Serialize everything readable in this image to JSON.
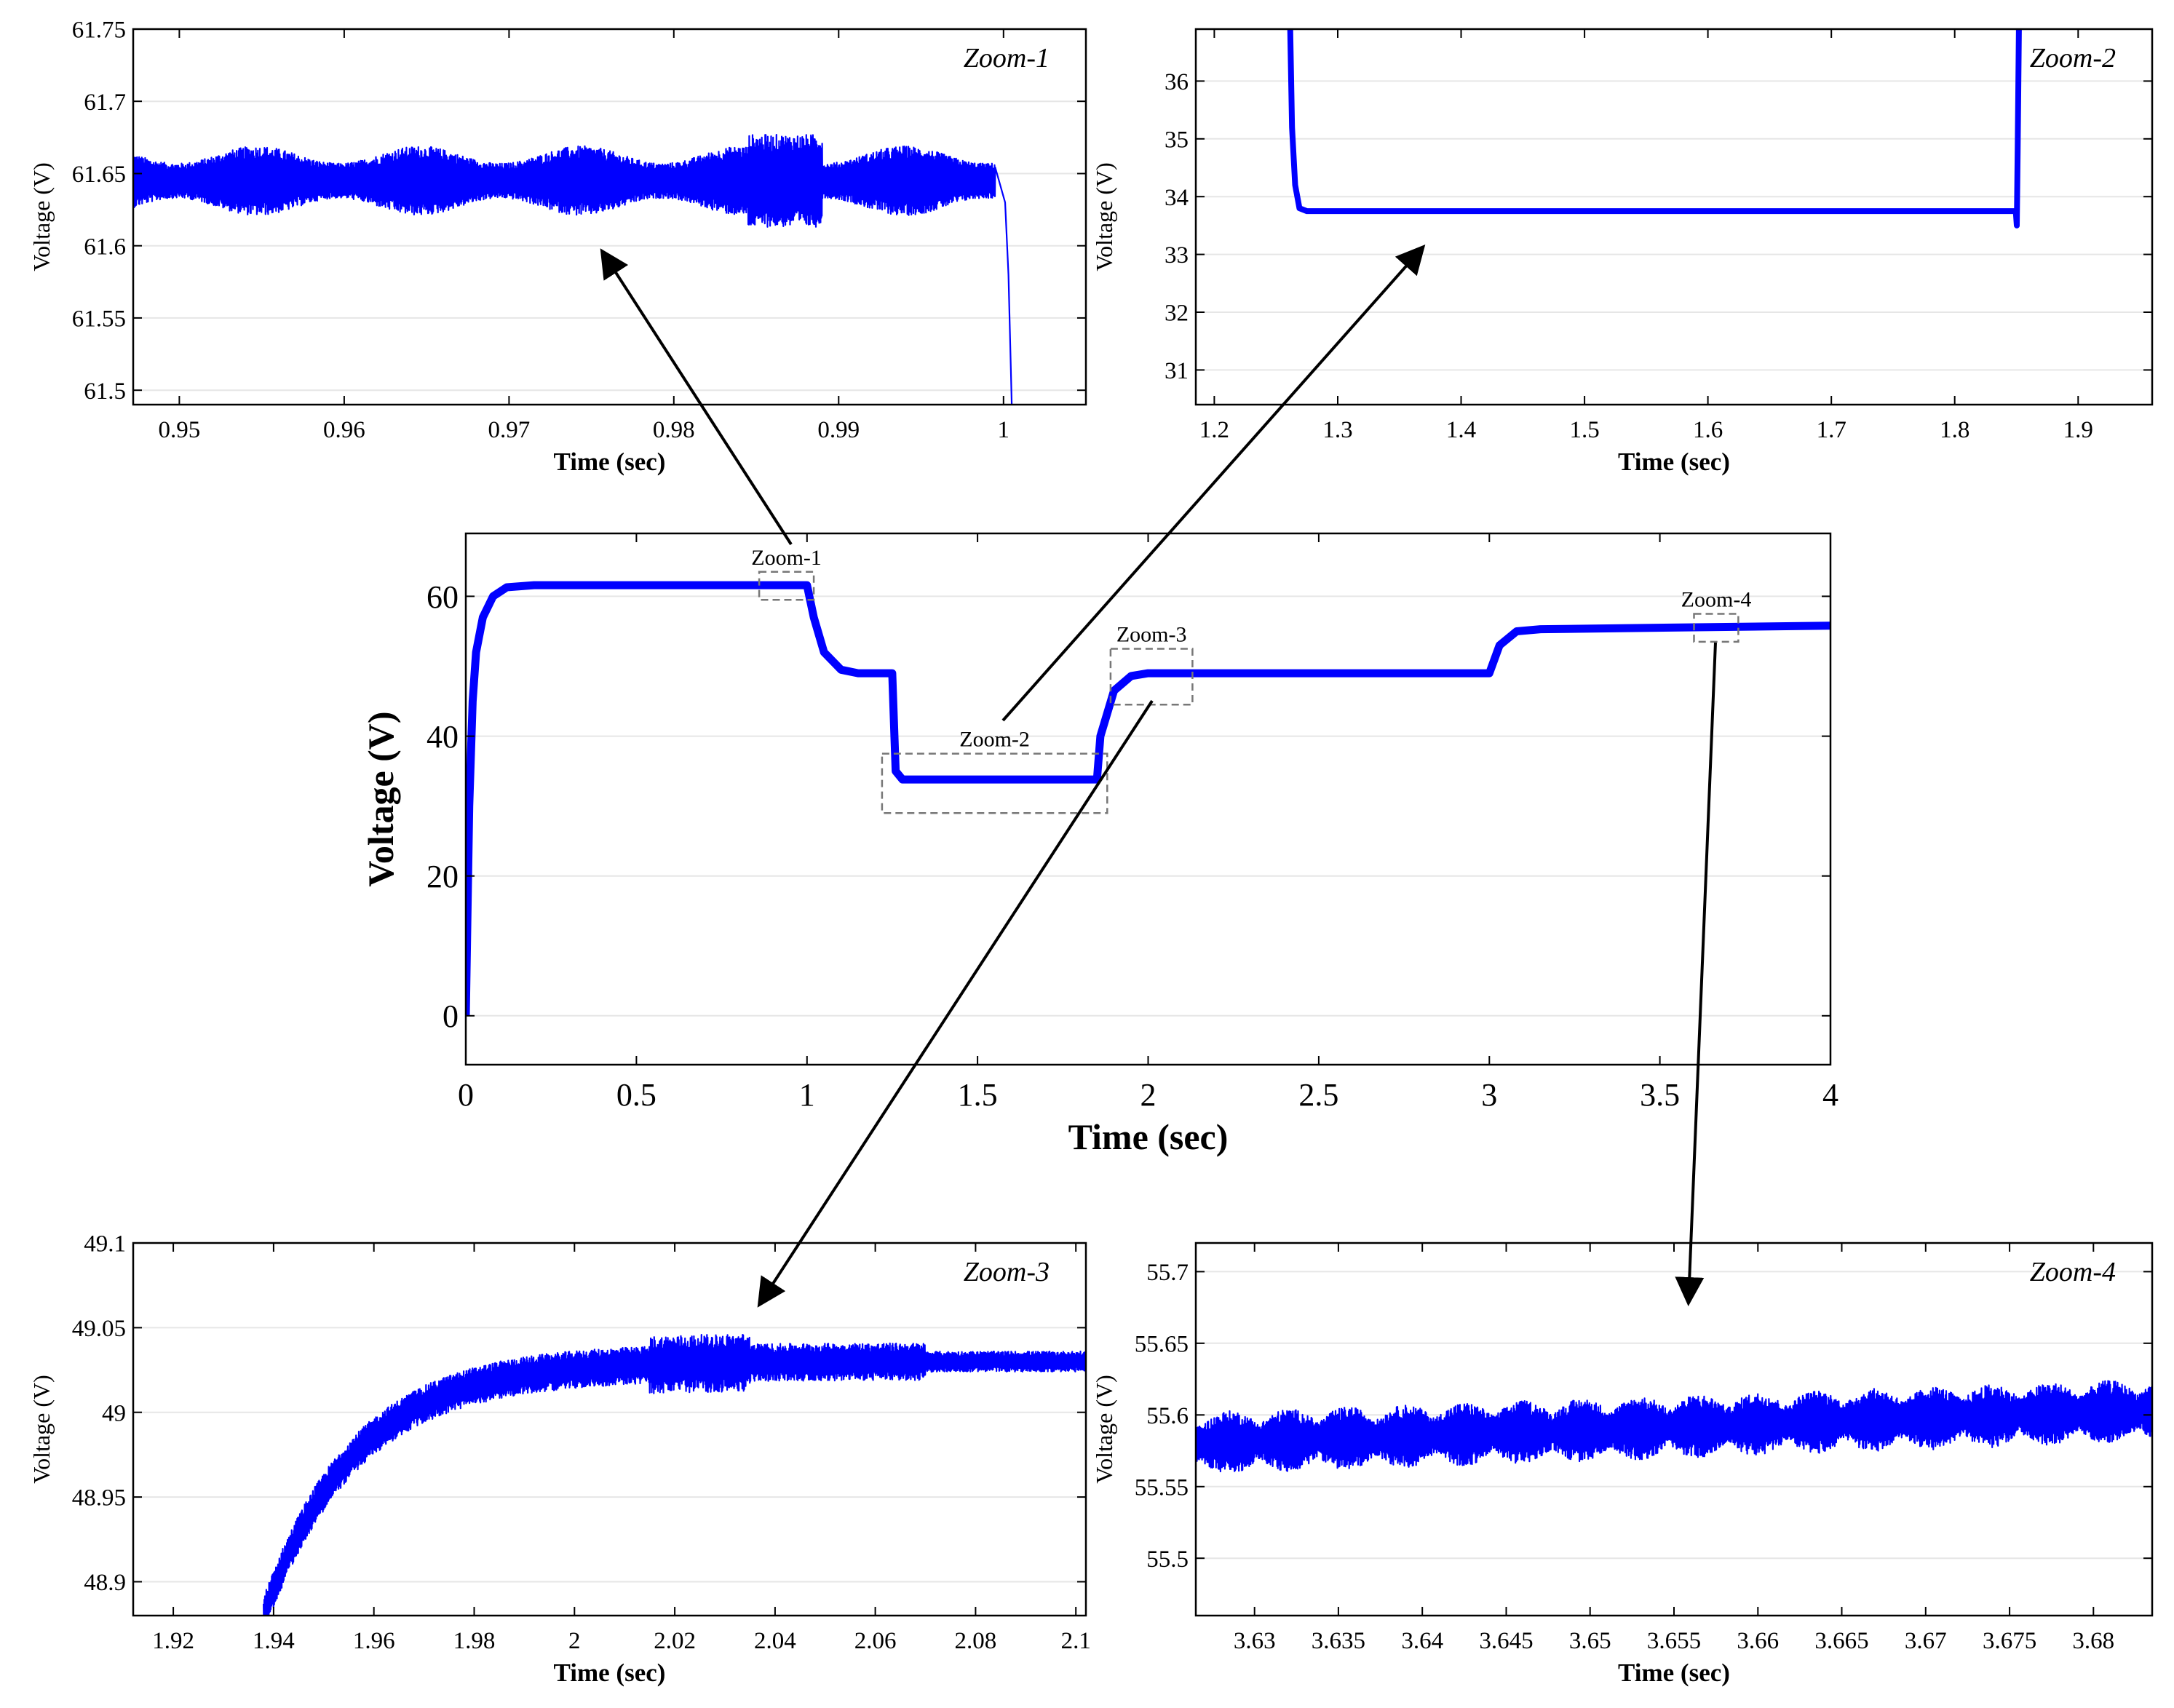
{
  "line_color": "#0000ff",
  "chart_data": [
    {
      "id": "main",
      "type": "line",
      "xlabel": "Time (sec)",
      "ylabel": "Voltage (V)",
      "xlim": [
        0,
        4
      ],
      "ylim": [
        -7,
        69
      ],
      "xticks": [
        0,
        0.5,
        1,
        1.5,
        2,
        2.5,
        3,
        3.5,
        4
      ],
      "xtick_labels": [
        "0",
        "0.5",
        "1",
        "1.5",
        "2",
        "2.5",
        "3",
        "3.5",
        "4"
      ],
      "yticks": [
        0,
        20,
        40,
        60
      ],
      "ytick_labels": [
        "0",
        "20",
        "40",
        "60"
      ],
      "grid": "horizontal",
      "series": [
        {
          "x": [
            0,
            0.01,
            0.02,
            0.03,
            0.05,
            0.08,
            0.12,
            0.2,
            1.0,
            1.02,
            1.05,
            1.1,
            1.15,
            1.25,
            1.26,
            1.28,
            1.85,
            1.86,
            1.9,
            1.95,
            2.0,
            3.0,
            3.03,
            3.08,
            3.15,
            4.0
          ],
          "y": [
            0,
            30,
            45,
            52,
            57,
            60,
            61.3,
            61.6,
            61.6,
            57,
            52,
            49.5,
            49,
            49,
            35,
            33.8,
            33.8,
            40,
            46.5,
            48.6,
            49,
            49,
            53,
            55,
            55.3,
            55.8
          ]
        }
      ],
      "zoom_boxes": [
        {
          "label": "Zoom-1",
          "x": [
            0.86,
            1.02
          ],
          "y": [
            59.5,
            63.5
          ]
        },
        {
          "label": "Zoom-2",
          "x": [
            1.22,
            1.88
          ],
          "y": [
            29,
            37.5
          ]
        },
        {
          "label": "Zoom-3",
          "x": [
            1.89,
            2.13
          ],
          "y": [
            44.5,
            52.5
          ]
        },
        {
          "label": "Zoom-4",
          "x": [
            3.6,
            3.73
          ],
          "y": [
            53.5,
            57.5
          ]
        }
      ]
    },
    {
      "id": "zoom1",
      "type": "line",
      "annotation": "Zoom-1",
      "xlabel": "Time (sec)",
      "ylabel": "Voltage (V)",
      "xlim": [
        0.9472,
        1.005
      ],
      "ylim": [
        61.49,
        61.75
      ],
      "xticks": [
        0.95,
        0.96,
        0.97,
        0.98,
        0.99,
        1
      ],
      "xtick_labels": [
        "0.95",
        "0.96",
        "0.97",
        "0.98",
        "0.99",
        "1"
      ],
      "yticks": [
        61.5,
        61.55,
        61.6,
        61.65,
        61.7,
        61.75
      ],
      "ytick_labels": [
        "61.5",
        "61.55",
        "61.6",
        "61.65",
        "61.7",
        "61.75"
      ],
      "grid": "horizontal",
      "series": [
        {
          "description_values": "oscillating signal, mean 61.645 V, amplitude about ±0.02 V, drops below 61.5 V at t = 1.0005 s",
          "x": [
            0.9472,
            0.9865,
            0.9995,
            1.0003,
            1.0005
          ],
          "y": [
            61.645,
            61.645,
            61.645,
            61.62,
            61.49
          ]
        }
      ]
    },
    {
      "id": "zoom2",
      "type": "line",
      "annotation": "Zoom-2",
      "xlabel": "Time (sec)",
      "ylabel": "Voltage (V)",
      "xlim": [
        1.185,
        1.96
      ],
      "ylim": [
        30.4,
        36.9
      ],
      "xticks": [
        1.2,
        1.3,
        1.4,
        1.5,
        1.6,
        1.7,
        1.8,
        1.9
      ],
      "xtick_labels": [
        "1.2",
        "1.3",
        "1.4",
        "1.5",
        "1.6",
        "1.7",
        "1.8",
        "1.9"
      ],
      "yticks": [
        31,
        32,
        33,
        34,
        35,
        36
      ],
      "ytick_labels": [
        "31",
        "32",
        "33",
        "34",
        "35",
        "36"
      ],
      "grid": "horizontal",
      "series": [
        {
          "x": [
            1.2615,
            1.263,
            1.2655,
            1.269,
            1.275,
            1.8495,
            1.8503,
            1.851,
            1.852,
            1.853
          ],
          "y": [
            36.9,
            35.2,
            34.2,
            33.8,
            33.75,
            33.75,
            33.5,
            34.8,
            36.9,
            36.9
          ]
        }
      ]
    },
    {
      "id": "zoom3",
      "type": "line",
      "annotation": "Zoom-3",
      "xlabel": "Time (sec)",
      "ylabel": "Voltage (V)",
      "xlim": [
        1.912,
        2.102
      ],
      "ylim": [
        48.88,
        49.1
      ],
      "xticks": [
        1.92,
        1.94,
        1.96,
        1.98,
        2,
        2.02,
        2.04,
        2.06,
        2.08,
        2.1
      ],
      "xtick_labels": [
        "1.92",
        "1.94",
        "1.96",
        "1.98",
        "2",
        "2.02",
        "2.04",
        "2.06",
        "2.08",
        "2.1"
      ],
      "yticks": [
        48.9,
        48.95,
        49,
        49.05,
        49.1
      ],
      "ytick_labels": [
        "48.9",
        "48.95",
        "49",
        "49.05",
        "49.1"
      ],
      "grid": "horizontal",
      "series": [
        {
          "description_values": "first-order rise from 48.88 V at 1.938 s toward 49.03 V with ±0.01 V ripple",
          "x": [
            1.938,
            1.95,
            1.96,
            1.98,
            2.0,
            2.05,
            2.102
          ],
          "y": [
            48.88,
            48.945,
            48.975,
            49.01,
            49.022,
            49.028,
            49.03
          ]
        }
      ]
    },
    {
      "id": "zoom4",
      "type": "line",
      "annotation": "Zoom-4",
      "xlabel": "Time (sec)",
      "ylabel": "Voltage (V)",
      "xlim": [
        3.6265,
        3.6835
      ],
      "ylim": [
        55.46,
        55.72
      ],
      "xticks": [
        3.63,
        3.635,
        3.64,
        3.645,
        3.65,
        3.655,
        3.66,
        3.665,
        3.67,
        3.675,
        3.68
      ],
      "xtick_labels": [
        "3.63",
        "3.635",
        "3.64",
        "3.645",
        "3.65",
        "3.655",
        "3.66",
        "3.665",
        "3.67",
        "3.675",
        "3.68"
      ],
      "yticks": [
        55.5,
        55.55,
        55.6,
        55.65,
        55.7
      ],
      "ytick_labels": [
        "55.5",
        "55.55",
        "55.6",
        "55.65",
        "55.7"
      ],
      "grid": "horizontal",
      "series": [
        {
          "description_values": "ripple around a slowly rising mean from 55.58 V to 55.603 V, amplitude about ±0.02 V",
          "x": [
            3.6265,
            3.6835
          ],
          "y": [
            55.58,
            55.603
          ]
        }
      ]
    }
  ]
}
